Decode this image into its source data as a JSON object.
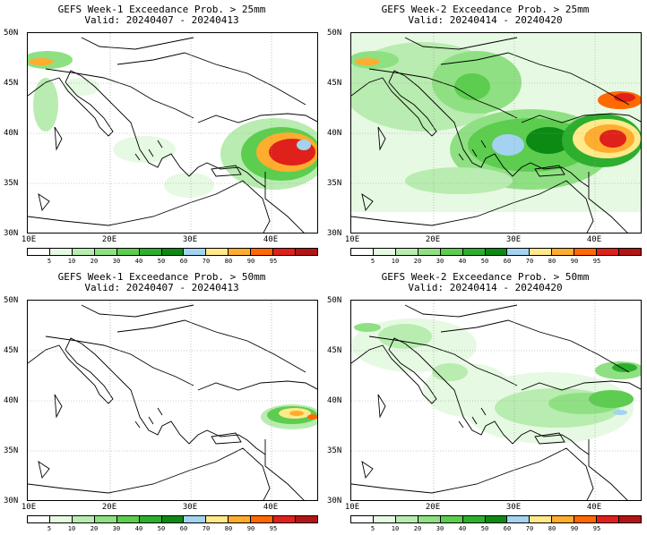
{
  "panels": [
    {
      "title": "GEFS Week-1 Exceedance Prob. > 25mm",
      "valid": "Valid: 20240407 - 20240413"
    },
    {
      "title": "GEFS Week-2 Exceedance Prob. > 25mm",
      "valid": "Valid: 20240414 - 20240420"
    },
    {
      "title": "GEFS Week-1 Exceedance Prob. > 50mm",
      "valid": "Valid: 20240407 - 20240413"
    },
    {
      "title": "GEFS Week-2 Exceedance Prob. > 50mm",
      "valid": "Valid: 20240414 - 20240420"
    }
  ],
  "lat_labels": [
    "50N",
    "45N",
    "40N",
    "35N",
    "30N"
  ],
  "lon_labels": [
    "10E",
    "20E",
    "30E",
    "40E"
  ],
  "colorbar": {
    "ticks": [
      "5",
      "10",
      "20",
      "30",
      "40",
      "50",
      "60",
      "70",
      "80",
      "90",
      "95"
    ],
    "colors": [
      "#ffffff",
      "#e6f9e2",
      "#b9ecb0",
      "#8fe082",
      "#5ccd4f",
      "#2eae2e",
      "#0d8a14",
      "#a3d3f0",
      "#ffe98a",
      "#ffad2e",
      "#ff6a00",
      "#e0201b",
      "#b31414"
    ]
  }
}
